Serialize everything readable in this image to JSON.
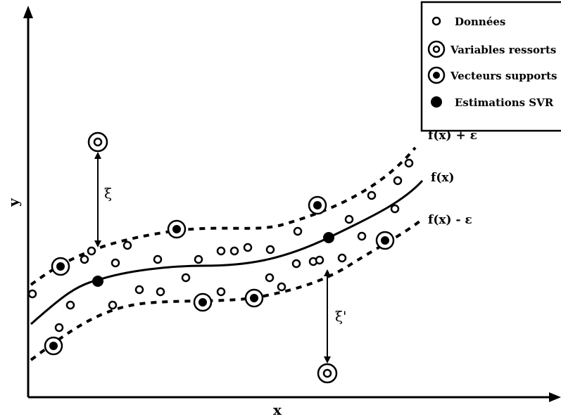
{
  "axes": {
    "x_label": "x",
    "y_label": "y"
  },
  "legend": {
    "items": [
      {
        "symbol": "data-point",
        "label": "Données"
      },
      {
        "symbol": "slack-variable",
        "label": "Variables ressorts"
      },
      {
        "symbol": "support-vector",
        "label": "Vecteurs supports"
      },
      {
        "symbol": "svr-estimate",
        "label": "Estimations SVR"
      }
    ]
  },
  "curves": {
    "upper_label": "f(x) + ε",
    "center_label": "f(x)",
    "lower_label": "f(x) - ε"
  },
  "slack": {
    "upper_label": "ξ",
    "lower_label": "ξ'"
  }
}
